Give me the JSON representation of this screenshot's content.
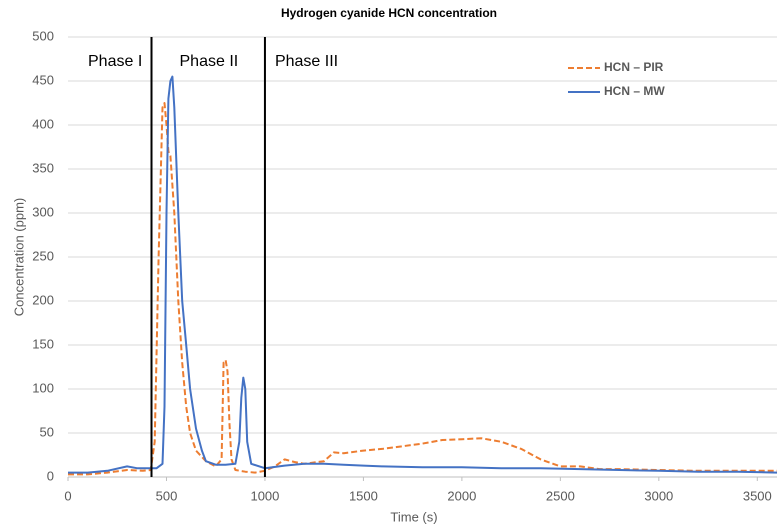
{
  "chart_data": {
    "type": "line",
    "title": "Hydrogen cyanide HCN concentration",
    "x_label": "Time (s)",
    "y_label": "Concentration (ppm)",
    "xlim": [
      0,
      3600
    ],
    "ylim": [
      0,
      500
    ],
    "xticks": [
      0,
      500,
      1000,
      1500,
      2000,
      2500,
      3000,
      3500
    ],
    "yticks": [
      0,
      50,
      100,
      150,
      200,
      250,
      300,
      350,
      400,
      450,
      500
    ],
    "grid": true,
    "legend": "top-right",
    "phase_lines": [
      424,
      1000
    ],
    "phase_labels": [
      "Phase I",
      "Phase II",
      "Phase III"
    ],
    "series": [
      {
        "name": "HCN – PIR",
        "color": "#ed7d31",
        "dashed": true,
        "x": [
          0,
          100,
          200,
          300,
          380,
          420,
          440,
          460,
          480,
          490,
          500,
          510,
          520,
          540,
          560,
          580,
          600,
          620,
          650,
          700,
          750,
          780,
          790,
          800,
          810,
          820,
          830,
          850,
          900,
          950,
          1000,
          1050,
          1100,
          1150,
          1200,
          1300,
          1350,
          1400,
          1500,
          1600,
          1700,
          1800,
          1900,
          2000,
          2100,
          2200,
          2300,
          2400,
          2500,
          2600,
          2700,
          2800,
          3000,
          3200,
          3400,
          3600
        ],
        "values": [
          3,
          3,
          5,
          8,
          7,
          8,
          40,
          250,
          420,
          425,
          400,
          370,
          365,
          300,
          200,
          130,
          80,
          50,
          30,
          18,
          12,
          20,
          130,
          133,
          120,
          60,
          20,
          8,
          6,
          5,
          7,
          12,
          20,
          17,
          15,
          18,
          28,
          27,
          30,
          32,
          35,
          38,
          42,
          43,
          44,
          40,
          32,
          20,
          12,
          12,
          9,
          9,
          8,
          7,
          7,
          7
        ]
      },
      {
        "name": "HCN – MW",
        "color": "#4472c4",
        "dashed": false,
        "x": [
          0,
          100,
          200,
          300,
          350,
          400,
          450,
          480,
          490,
          500,
          510,
          520,
          530,
          540,
          550,
          560,
          580,
          600,
          620,
          650,
          680,
          700,
          750,
          800,
          850,
          870,
          880,
          890,
          900,
          910,
          930,
          1000,
          1100,
          1200,
          1300,
          1400,
          1500,
          1600,
          1800,
          2000,
          2200,
          2400,
          2600,
          2800,
          3000,
          3200,
          3400,
          3600
        ],
        "values": [
          5,
          5,
          7,
          12,
          10,
          10,
          10,
          15,
          80,
          300,
          430,
          450,
          455,
          420,
          360,
          300,
          200,
          150,
          100,
          55,
          30,
          18,
          14,
          14,
          15,
          40,
          90,
          113,
          100,
          40,
          15,
          10,
          13,
          15,
          15,
          14,
          13,
          12,
          11,
          11,
          10,
          10,
          9,
          8,
          7,
          6,
          6,
          5
        ]
      }
    ]
  }
}
